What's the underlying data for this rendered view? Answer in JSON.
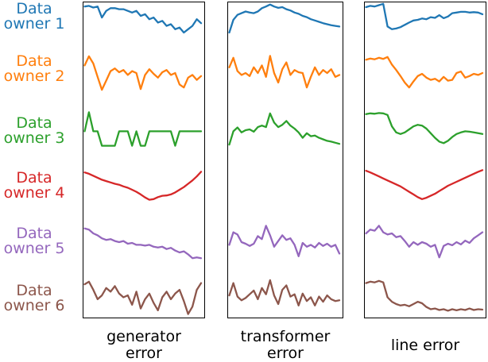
{
  "chart_data": {
    "type": "line",
    "layout": "small_multiples_grid",
    "grid": {
      "rows": 6,
      "cols": 3
    },
    "axes_shown": false,
    "value_encoding": "sparklines; no ticks, tick labels or gridlines visible; values are normalized vertical positions within each row band (0 = band top, 1 = band bottom), x evenly spaced",
    "rows": [
      {
        "id": "owner1",
        "label_line1": "Data",
        "label_line2": "owner 1",
        "color": "#1f77b4"
      },
      {
        "id": "owner2",
        "label_line1": "Data",
        "label_line2": "owner 2",
        "color": "#ff7f0e"
      },
      {
        "id": "owner3",
        "label_line1": "Data",
        "label_line2": "owner 3",
        "color": "#2ca02c"
      },
      {
        "id": "owner4",
        "label_line1": "Data",
        "label_line2": "owner 4",
        "color": "#d62728"
      },
      {
        "id": "owner5",
        "label_line1": "Data",
        "label_line2": "owner 5",
        "color": "#9467bd"
      },
      {
        "id": "owner6",
        "label_line1": "Data",
        "label_line2": "owner 6",
        "color": "#8c564b"
      }
    ],
    "columns": [
      {
        "id": "generator",
        "title_line1": "generator",
        "title_line2": "error"
      },
      {
        "id": "transformer",
        "title_line1": "transformer",
        "title_line2": "error"
      },
      {
        "id": "line",
        "title_line1": "line error",
        "title_line2": ""
      }
    ],
    "missing_series": [
      {
        "row": "owner4",
        "column": "transformer"
      }
    ],
    "series": [
      {
        "row": "owner1",
        "column": "generator",
        "values": [
          0.1,
          0.08,
          0.13,
          0.1,
          0.43,
          0.23,
          0.15,
          0.15,
          0.18,
          0.18,
          0.23,
          0.28,
          0.23,
          0.38,
          0.33,
          0.48,
          0.43,
          0.58,
          0.53,
          0.68,
          0.63,
          0.78,
          0.73,
          0.88,
          0.78,
          0.68,
          0.48,
          0.6
        ]
      },
      {
        "row": "owner2",
        "column": "generator",
        "values": [
          0.3,
          0.06,
          0.25,
          0.6,
          0.94,
          0.7,
          0.45,
          0.38,
          0.48,
          0.42,
          0.55,
          0.45,
          0.5,
          0.92,
          0.55,
          0.4,
          0.52,
          0.62,
          0.48,
          0.42,
          0.55,
          0.5,
          0.8,
          0.88,
          0.62,
          0.55,
          0.68,
          0.58
        ]
      },
      {
        "row": "owner3",
        "column": "generator",
        "values": [
          0.55,
          0.05,
          0.55,
          0.55,
          0.93,
          0.93,
          0.93,
          0.93,
          0.55,
          0.55,
          0.55,
          0.93,
          0.55,
          0.93,
          0.93,
          0.55,
          0.55,
          0.55,
          0.55,
          0.55,
          0.55,
          0.93,
          0.55,
          0.55,
          0.55,
          0.55,
          0.55,
          0.55
        ]
      },
      {
        "row": "owner4",
        "column": "generator",
        "values": [
          0.1,
          0.14,
          0.2,
          0.26,
          0.32,
          0.36,
          0.4,
          0.44,
          0.47,
          0.52,
          0.56,
          0.62,
          0.68,
          0.76,
          0.85,
          0.92,
          0.9,
          0.84,
          0.8,
          0.79,
          0.76,
          0.7,
          0.62,
          0.54,
          0.44,
          0.34,
          0.22,
          0.08
        ]
      },
      {
        "row": "owner5",
        "column": "generator",
        "values": [
          0.12,
          0.15,
          0.25,
          0.3,
          0.38,
          0.42,
          0.4,
          0.45,
          0.48,
          0.45,
          0.52,
          0.5,
          0.55,
          0.55,
          0.57,
          0.55,
          0.6,
          0.62,
          0.6,
          0.66,
          0.63,
          0.7,
          0.75,
          0.72,
          0.8,
          0.9,
          0.88,
          0.9
        ]
      },
      {
        "row": "owner6",
        "column": "generator",
        "values": [
          0.15,
          0.08,
          0.3,
          0.55,
          0.45,
          0.25,
          0.35,
          0.2,
          0.4,
          0.5,
          0.45,
          0.7,
          0.35,
          0.8,
          0.55,
          0.4,
          0.65,
          0.85,
          0.5,
          0.35,
          0.55,
          0.4,
          0.3,
          0.6,
          0.95,
          0.75,
          0.3,
          0.12
        ]
      },
      {
        "row": "owner1",
        "column": "transformer",
        "values": [
          0.88,
          0.5,
          0.35,
          0.3,
          0.25,
          0.28,
          0.3,
          0.25,
          0.15,
          0.1,
          0.04,
          0.1,
          0.14,
          0.12,
          0.18,
          0.22,
          0.28,
          0.32,
          0.38,
          0.42,
          0.48,
          0.52,
          0.56,
          0.6,
          0.63,
          0.66,
          0.68,
          0.7
        ]
      },
      {
        "row": "owner2",
        "column": "transformer",
        "values": [
          0.35,
          0.1,
          0.45,
          0.55,
          0.5,
          0.58,
          0.35,
          0.5,
          0.3,
          0.6,
          0.05,
          0.5,
          0.75,
          0.4,
          0.22,
          0.55,
          0.42,
          0.48,
          0.5,
          0.88,
          0.6,
          0.35,
          0.55,
          0.42,
          0.5,
          0.4,
          0.6,
          0.55
        ]
      },
      {
        "row": "owner3",
        "column": "transformer",
        "values": [
          0.9,
          0.55,
          0.45,
          0.58,
          0.52,
          0.5,
          0.56,
          0.44,
          0.4,
          0.44,
          0.08,
          0.32,
          0.44,
          0.38,
          0.28,
          0.4,
          0.48,
          0.58,
          0.72,
          0.6,
          0.68,
          0.66,
          0.72,
          0.76,
          0.8,
          0.82,
          0.85,
          0.88
        ]
      },
      {
        "row": "owner5",
        "column": "transformer",
        "values": [
          0.55,
          0.22,
          0.28,
          0.48,
          0.52,
          0.58,
          0.52,
          0.32,
          0.4,
          0.05,
          0.3,
          0.6,
          0.45,
          0.3,
          0.42,
          0.38,
          0.55,
          0.85,
          0.5,
          0.6,
          0.55,
          0.62,
          0.5,
          0.58,
          0.52,
          0.6,
          0.55,
          0.78
        ]
      },
      {
        "row": "owner6",
        "column": "transformer",
        "values": [
          0.45,
          0.12,
          0.48,
          0.58,
          0.52,
          0.42,
          0.32,
          0.55,
          0.25,
          0.42,
          0.04,
          0.45,
          0.68,
          0.3,
          0.18,
          0.48,
          0.42,
          0.72,
          0.4,
          0.6,
          0.5,
          0.72,
          0.48,
          0.62,
          0.45,
          0.55,
          0.6,
          0.58
        ]
      },
      {
        "row": "owner1",
        "column": "line",
        "values": [
          0.12,
          0.08,
          0.1,
          0.06,
          0.02,
          0.7,
          0.78,
          0.76,
          0.72,
          0.65,
          0.58,
          0.52,
          0.5,
          0.46,
          0.48,
          0.42,
          0.44,
          0.36,
          0.45,
          0.4,
          0.3,
          0.28,
          0.26,
          0.26,
          0.28,
          0.27,
          0.28,
          0.33
        ]
      },
      {
        "row": "owner2",
        "column": "line",
        "values": [
          0.15,
          0.12,
          0.14,
          0.1,
          0.13,
          0.08,
          0.28,
          0.42,
          0.58,
          0.75,
          0.88,
          0.72,
          0.58,
          0.52,
          0.62,
          0.68,
          0.65,
          0.72,
          0.6,
          0.7,
          0.68,
          0.5,
          0.46,
          0.62,
          0.58,
          0.52,
          0.55,
          0.5
        ]
      },
      {
        "row": "owner3",
        "column": "line",
        "values": [
          0.1,
          0.08,
          0.09,
          0.07,
          0.08,
          0.12,
          0.42,
          0.58,
          0.62,
          0.58,
          0.5,
          0.42,
          0.38,
          0.4,
          0.48,
          0.6,
          0.72,
          0.82,
          0.86,
          0.8,
          0.7,
          0.62,
          0.58,
          0.55,
          0.56,
          0.58,
          0.6,
          0.62
        ]
      },
      {
        "row": "owner4",
        "column": "line",
        "values": [
          0.05,
          0.1,
          0.16,
          0.22,
          0.28,
          0.34,
          0.4,
          0.46,
          0.52,
          0.6,
          0.68,
          0.76,
          0.84,
          0.9,
          0.86,
          0.8,
          0.74,
          0.66,
          0.58,
          0.5,
          0.44,
          0.38,
          0.32,
          0.26,
          0.2,
          0.14,
          0.08,
          0.03
        ]
      },
      {
        "row": "owner5",
        "column": "line",
        "values": [
          0.25,
          0.15,
          0.18,
          0.05,
          0.22,
          0.28,
          0.25,
          0.35,
          0.32,
          0.45,
          0.6,
          0.48,
          0.55,
          0.48,
          0.52,
          0.6,
          0.55,
          0.88,
          0.58,
          0.52,
          0.56,
          0.48,
          0.54,
          0.44,
          0.5,
          0.38,
          0.3,
          0.22
        ]
      },
      {
        "row": "owner6",
        "column": "line",
        "values": [
          0.12,
          0.08,
          0.1,
          0.06,
          0.1,
          0.5,
          0.62,
          0.68,
          0.72,
          0.7,
          0.74,
          0.68,
          0.62,
          0.66,
          0.76,
          0.82,
          0.8,
          0.84,
          0.82,
          0.86,
          0.82,
          0.85,
          0.82,
          0.84,
          0.8,
          0.84,
          0.82,
          0.83
        ]
      }
    ]
  }
}
